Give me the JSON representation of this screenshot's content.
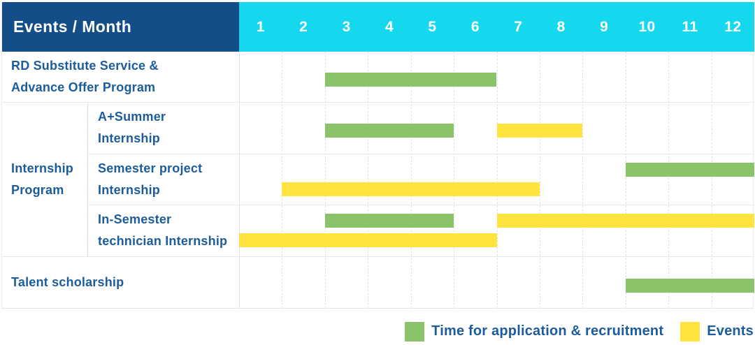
{
  "title": "Events / Month",
  "colors": {
    "header_bg": "#144e88",
    "months_bg": "#15d7ee",
    "header_text": "#ffffff",
    "label_text": "#1d5c9b",
    "recruitment_green": "#8bc36a",
    "events_yellow": "#ffe33e"
  },
  "chart_data": {
    "type": "bar",
    "subtype": "gantt-timeline",
    "title": "Events / Month",
    "x_axis": {
      "label": "Month",
      "ticks": [
        "1",
        "2",
        "3",
        "4",
        "5",
        "6",
        "7",
        "8",
        "9",
        "10",
        "11",
        "12"
      ],
      "range": [
        1,
        12
      ]
    },
    "grid": true,
    "legend_position": "bottom-right",
    "legend": [
      {
        "name": "Time for application & recruitment",
        "color_key": "recruitment_green"
      },
      {
        "name": "Events",
        "color_key": "events_yellow"
      }
    ],
    "rows": [
      {
        "group": null,
        "label": "RD Substitute Service & Advance Offer Program",
        "label_lines": [
          "RD Substitute Service &",
          "Advance Offer Program"
        ],
        "bars": [
          {
            "series": "Time for application & recruitment",
            "start_month": 3,
            "end_month": 6,
            "lane": "single"
          }
        ]
      },
      {
        "group": "Internship Program",
        "label": "A+Summer Internship",
        "label_lines": [
          "A+Summer",
          "Internship"
        ],
        "bars": [
          {
            "series": "Time for application & recruitment",
            "start_month": 3,
            "end_month": 5,
            "lane": "single"
          },
          {
            "series": "Events",
            "start_month": 7,
            "end_month": 8,
            "lane": "single"
          }
        ]
      },
      {
        "group": "Internship Program",
        "label": "Semester project Internship",
        "label_lines": [
          "Semester project",
          "Internship"
        ],
        "bars": [
          {
            "series": "Time for application & recruitment",
            "start_month": 10,
            "end_month": 12,
            "lane": "top"
          },
          {
            "series": "Events",
            "start_month": 2,
            "end_month": 7,
            "lane": "bottom"
          }
        ]
      },
      {
        "group": "Internship Program",
        "label": "In-Semester technician Internship",
        "label_lines": [
          "In-Semester",
          "technician Internship"
        ],
        "bars": [
          {
            "series": "Time for application & recruitment",
            "start_month": 3,
            "end_month": 5,
            "lane": "top"
          },
          {
            "series": "Events",
            "start_month": 7,
            "end_month": 12,
            "lane": "top"
          },
          {
            "series": "Events",
            "start_month": 1,
            "end_month": 6,
            "lane": "bottom"
          }
        ]
      },
      {
        "group": null,
        "label": "Talent scholarship",
        "label_lines": [
          "Talent scholarship"
        ],
        "bars": [
          {
            "series": "Time for application & recruitment",
            "start_month": 10,
            "end_month": 12,
            "lane": "single"
          }
        ]
      }
    ]
  }
}
